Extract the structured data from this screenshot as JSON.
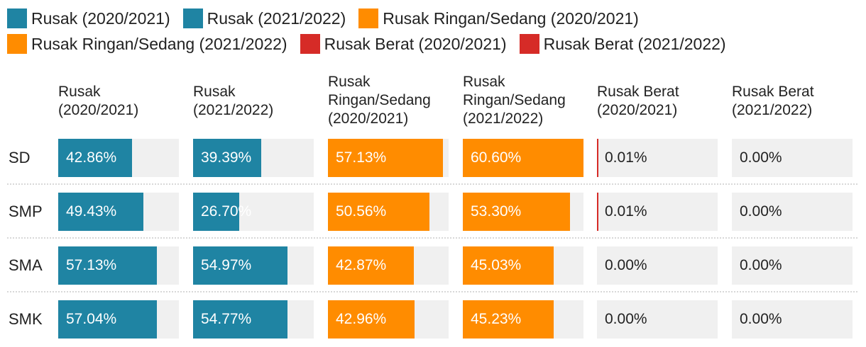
{
  "chart_data": {
    "type": "table",
    "title": "",
    "columns": [
      {
        "label": "Rusak\n(2020/2021)",
        "color": "#1f84a3"
      },
      {
        "label": "Rusak\n(2021/2022)",
        "color": "#1f84a3"
      },
      {
        "label": "Rusak\nRingan/Sedang\n(2020/2021)",
        "color": "#ff8c00"
      },
      {
        "label": "Rusak\nRingan/Sedang\n(2021/2022)",
        "color": "#ff8c00"
      },
      {
        "label": "Rusak Berat\n(2020/2021)",
        "color": "#d62b27"
      },
      {
        "label": "Rusak Berat\n(2021/2022)",
        "color": "#d62b27"
      }
    ],
    "legend": [
      {
        "label": "Rusak (2020/2021)",
        "color": "#1f84a3"
      },
      {
        "label": "Rusak (2021/2022)",
        "color": "#1f84a3"
      },
      {
        "label": "Rusak Ringan/Sedang (2020/2021)",
        "color": "#ff8c00"
      },
      {
        "label": "Rusak Ringan/Sedang (2021/2022)",
        "color": "#ff8c00"
      },
      {
        "label": "Rusak Berat (2020/2021)",
        "color": "#d62b27"
      },
      {
        "label": "Rusak Berat (2021/2022)",
        "color": "#d62b27"
      }
    ],
    "rows": [
      {
        "label": "SD",
        "values": [
          42.86,
          39.39,
          57.13,
          60.6,
          0.01,
          0.0
        ]
      },
      {
        "label": "SMP",
        "values": [
          49.43,
          26.7,
          50.56,
          53.3,
          0.01,
          0.0
        ]
      },
      {
        "label": "SMA",
        "values": [
          57.13,
          54.97,
          42.87,
          45.03,
          0.0,
          0.0
        ]
      },
      {
        "label": "SMK",
        "values": [
          57.04,
          54.77,
          42.96,
          45.23,
          0.0,
          0.0
        ]
      }
    ],
    "value_suffix": "%",
    "column_max": [
      70,
      70,
      60,
      60,
      1,
      1
    ]
  }
}
